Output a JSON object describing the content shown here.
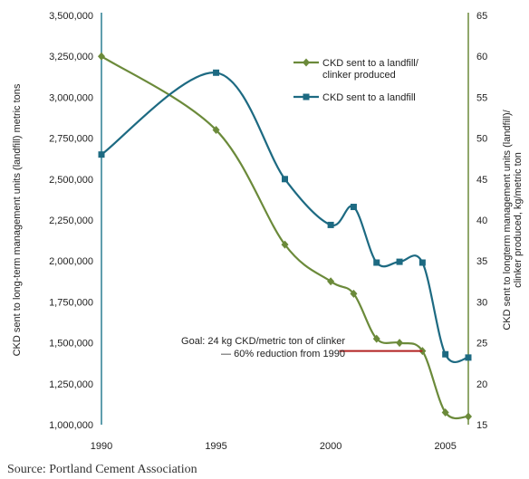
{
  "chart_data": {
    "type": "line",
    "title": "",
    "xlabel": "",
    "ylabel_left": "CKD sent to long-term management units (landfill) metric tons",
    "ylabel_right_lines": [
      "CKD sent to longterm management units (landfill)/",
      "clinker produced, kg/metric ton"
    ],
    "x_ticks": [
      1990,
      1995,
      2000,
      2005
    ],
    "xlim": [
      1990,
      2006
    ],
    "y_left_ticks": [
      "3,500,000",
      "3,250,000",
      "3,000,000",
      "2,750,000",
      "2,500,000",
      "2,250,000",
      "2,000,000",
      "1,750,000",
      "1,500,000",
      "1,250,000",
      "1,000,000"
    ],
    "y_left_lim": [
      1000000,
      3500000
    ],
    "y_right_ticks": [
      "65",
      "60",
      "55",
      "50",
      "45",
      "40",
      "35",
      "30",
      "25",
      "20",
      "15"
    ],
    "y_right_lim": [
      15,
      65
    ],
    "grid": false,
    "legend_position": "top-right",
    "series": [
      {
        "name": "CKD sent to a landfill/ clinker produced",
        "legend_lines": [
          "CKD sent to a landfill/",
          "clinker produced"
        ],
        "axis": "right",
        "color": "#6b8a3a",
        "marker": "diamond",
        "x": [
          1990,
          1995,
          1998,
          2000,
          2001,
          2002,
          2003,
          2004,
          2005,
          2006
        ],
        "y": [
          60,
          51,
          37,
          32.5,
          31,
          25.5,
          25,
          24,
          16.5,
          16
        ]
      },
      {
        "name": "CKD sent to a landfill",
        "legend_lines": [
          "CKD sent to a landfill"
        ],
        "axis": "left",
        "color": "#1d6a82",
        "marker": "square",
        "x": [
          1990,
          1995,
          1998,
          2000,
          2001,
          2002,
          2003,
          2004,
          2005,
          2006
        ],
        "y": [
          2650000,
          3150000,
          2500000,
          2220000,
          2330000,
          1990000,
          1995000,
          1990000,
          1430000,
          1410000
        ]
      }
    ],
    "goal_line": {
      "value": 24,
      "x_start": 2001,
      "x_end": 2004,
      "axis": "right",
      "color": "#b22222"
    },
    "annotation": {
      "lines": [
        "Goal: 24 kg CKD/metric ton of clinker",
        "— 60% reduction from 1990"
      ]
    }
  },
  "footer": {
    "source": "Source: Portland Cement Association"
  },
  "colors": {
    "left_axis": "#2a7f92",
    "right_axis": "#6b8a3a"
  }
}
